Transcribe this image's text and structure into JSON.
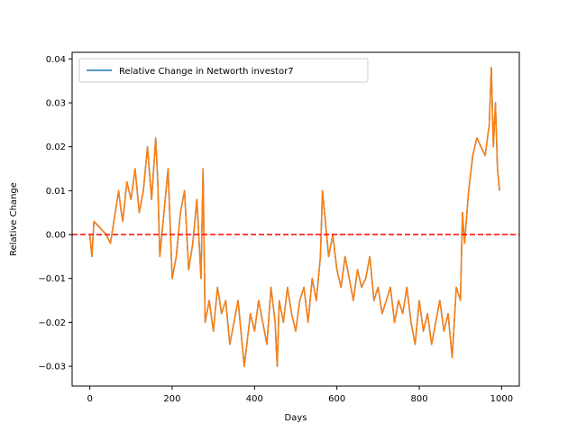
{
  "chart_data": {
    "type": "line",
    "title": "",
    "xlabel": "Days",
    "ylabel": "Relative Change",
    "xlim": [
      -43,
      1043
    ],
    "ylim": [
      -0.0345,
      0.0415
    ],
    "x_ticks": [
      0,
      200,
      400,
      600,
      800,
      1000
    ],
    "x_tick_labels": [
      "0",
      "200",
      "400",
      "600",
      "800",
      "1000"
    ],
    "y_ticks": [
      -0.03,
      -0.02,
      -0.01,
      0.0,
      0.01,
      0.02,
      0.03,
      0.04
    ],
    "y_tick_labels": [
      "−0.03",
      "−0.02",
      "−0.01",
      "0.00",
      "0.01",
      "0.02",
      "0.03",
      "0.04"
    ],
    "legend": {
      "position": "upper-left",
      "entries": [
        {
          "label": "Relative Change in Networth investor7",
          "color": "#1f77b4"
        }
      ]
    },
    "reference_line": {
      "y": 0.0,
      "color": "#ff0000",
      "style": "dashed"
    },
    "series": [
      {
        "name": "Relative Change in Networth investor7",
        "color": "#1f77b4",
        "x": [
          0,
          5,
          10,
          20,
          30,
          40,
          50,
          60,
          70,
          75,
          80,
          90,
          100,
          110,
          120,
          130,
          140,
          150,
          160,
          165,
          170,
          180,
          190,
          200,
          210,
          220,
          230,
          240,
          250,
          260,
          270,
          275,
          280,
          290,
          300,
          310,
          320,
          330,
          340,
          350,
          360,
          375,
          390,
          400,
          410,
          420,
          430,
          440,
          450,
          455,
          460,
          470,
          480,
          490,
          500,
          510,
          520,
          530,
          540,
          550,
          560,
          565,
          570,
          580,
          590,
          600,
          610,
          620,
          630,
          640,
          650,
          660,
          670,
          680,
          690,
          700,
          710,
          720,
          730,
          740,
          750,
          760,
          770,
          780,
          790,
          800,
          810,
          820,
          830,
          840,
          850,
          860,
          870,
          880,
          890,
          900,
          905,
          910,
          920,
          930,
          940,
          950,
          960,
          970,
          975,
          980,
          985,
          990,
          995
        ],
        "values": [
          0.0,
          -0.005,
          0.003,
          0.002,
          0.001,
          0.0,
          -0.002,
          0.004,
          0.01,
          0.006,
          0.003,
          0.012,
          0.008,
          0.015,
          0.005,
          0.01,
          0.02,
          0.008,
          0.022,
          0.012,
          -0.005,
          0.005,
          0.015,
          -0.01,
          -0.005,
          0.005,
          0.01,
          -0.008,
          -0.002,
          0.008,
          -0.01,
          0.015,
          -0.02,
          -0.015,
          -0.022,
          -0.012,
          -0.018,
          -0.015,
          -0.025,
          -0.02,
          -0.015,
          -0.03,
          -0.018,
          -0.022,
          -0.015,
          -0.02,
          -0.025,
          -0.012,
          -0.02,
          -0.03,
          -0.015,
          -0.02,
          -0.012,
          -0.018,
          -0.022,
          -0.015,
          -0.012,
          -0.02,
          -0.01,
          -0.015,
          -0.005,
          0.01,
          0.005,
          -0.005,
          0.0,
          -0.008,
          -0.012,
          -0.005,
          -0.01,
          -0.015,
          -0.008,
          -0.012,
          -0.01,
          -0.005,
          -0.015,
          -0.012,
          -0.018,
          -0.015,
          -0.012,
          -0.02,
          -0.015,
          -0.018,
          -0.012,
          -0.02,
          -0.025,
          -0.015,
          -0.022,
          -0.018,
          -0.025,
          -0.02,
          -0.015,
          -0.022,
          -0.018,
          -0.028,
          -0.012,
          -0.015,
          0.005,
          -0.002,
          0.01,
          0.018,
          0.022,
          0.02,
          0.018,
          0.025,
          0.038,
          0.02,
          0.03,
          0.015,
          0.01
        ]
      },
      {
        "name": "",
        "color": "#ff7f0e",
        "x": [
          0,
          5,
          10,
          20,
          30,
          40,
          50,
          60,
          70,
          75,
          80,
          90,
          100,
          110,
          120,
          130,
          140,
          150,
          160,
          165,
          170,
          180,
          190,
          200,
          210,
          220,
          230,
          240,
          250,
          260,
          270,
          275,
          280,
          290,
          300,
          310,
          320,
          330,
          340,
          350,
          360,
          375,
          390,
          400,
          410,
          420,
          430,
          440,
          450,
          455,
          460,
          470,
          480,
          490,
          500,
          510,
          520,
          530,
          540,
          550,
          560,
          565,
          570,
          580,
          590,
          600,
          610,
          620,
          630,
          640,
          650,
          660,
          670,
          680,
          690,
          700,
          710,
          720,
          730,
          740,
          750,
          760,
          770,
          780,
          790,
          800,
          810,
          820,
          830,
          840,
          850,
          860,
          870,
          880,
          890,
          900,
          905,
          910,
          920,
          930,
          940,
          950,
          960,
          970,
          975,
          980,
          985,
          990,
          995
        ],
        "values": [
          0.0,
          -0.005,
          0.003,
          0.002,
          0.001,
          0.0,
          -0.002,
          0.004,
          0.01,
          0.006,
          0.003,
          0.012,
          0.008,
          0.015,
          0.005,
          0.01,
          0.02,
          0.008,
          0.022,
          0.012,
          -0.005,
          0.005,
          0.015,
          -0.01,
          -0.005,
          0.005,
          0.01,
          -0.008,
          -0.002,
          0.008,
          -0.01,
          0.015,
          -0.02,
          -0.015,
          -0.022,
          -0.012,
          -0.018,
          -0.015,
          -0.025,
          -0.02,
          -0.015,
          -0.03,
          -0.018,
          -0.022,
          -0.015,
          -0.02,
          -0.025,
          -0.012,
          -0.02,
          -0.03,
          -0.015,
          -0.02,
          -0.012,
          -0.018,
          -0.022,
          -0.015,
          -0.012,
          -0.02,
          -0.01,
          -0.015,
          -0.005,
          0.01,
          0.005,
          -0.005,
          0.0,
          -0.008,
          -0.012,
          -0.005,
          -0.01,
          -0.015,
          -0.008,
          -0.012,
          -0.01,
          -0.005,
          -0.015,
          -0.012,
          -0.018,
          -0.015,
          -0.012,
          -0.02,
          -0.015,
          -0.018,
          -0.012,
          -0.02,
          -0.025,
          -0.015,
          -0.022,
          -0.018,
          -0.025,
          -0.02,
          -0.015,
          -0.022,
          -0.018,
          -0.028,
          -0.012,
          -0.015,
          0.005,
          -0.002,
          0.01,
          0.018,
          0.022,
          0.02,
          0.018,
          0.025,
          0.038,
          0.02,
          0.03,
          0.015,
          0.01
        ]
      }
    ]
  }
}
